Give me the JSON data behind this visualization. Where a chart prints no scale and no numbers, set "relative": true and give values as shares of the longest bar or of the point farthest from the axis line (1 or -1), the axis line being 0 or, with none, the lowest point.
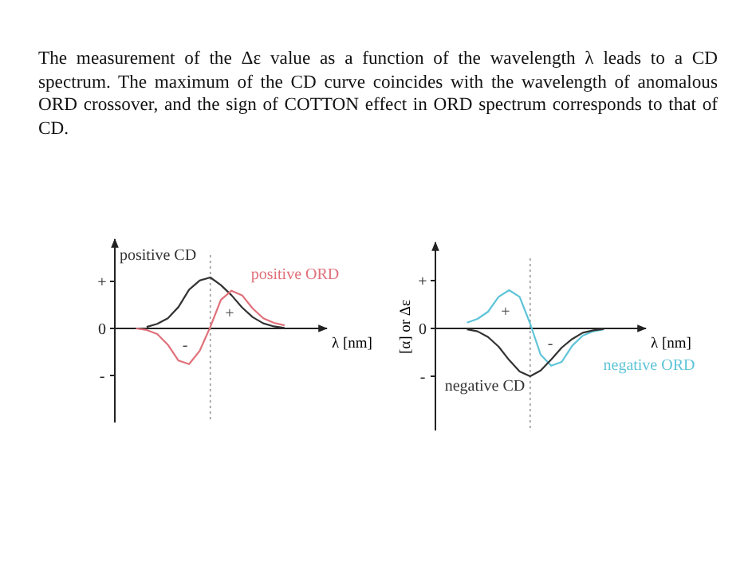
{
  "chart_data": [
    {
      "type": "line",
      "relative": true,
      "title": "The measurement of the Δε value as a function of the wavelength λ leads to a CD spectrum. The maximum of the CD curve coincides with the wavelength of anomalous ORD crossover, and the sign of COTTON effect in ORD spectrum corresponds to that of CD.",
      "xlabel": "λ [nm]",
      "tick_labels": false,
      "categories": [
        null,
        null,
        null,
        null,
        null,
        null,
        null,
        null,
        null,
        null,
        null,
        null,
        null,
        null,
        null,
        null,
        null,
        null,
        null,
        null,
        null
      ],
      "ref_lines": [
        {
          "axis": "x",
          "color": "#9a9a9a",
          "line_style": "dotted"
        }
      ],
      "series": [
        {
          "name": "positive CD",
          "color": "#333333",
          "values": [
            null,
            null,
            null,
            0.03,
            0.09,
            0.2,
            0.42,
            0.76,
            0.94,
            1,
            0.85,
            0.65,
            0.41,
            0.22,
            0.1,
            0.04,
            0.01,
            null,
            null,
            null,
            null
          ]
        },
        {
          "name": "positive ORD",
          "color": "#e0707a",
          "values": [
            null,
            null,
            0,
            -0.03,
            -0.11,
            -0.32,
            -0.63,
            -0.7,
            -0.44,
            0.03,
            0.56,
            0.74,
            0.65,
            0.39,
            0.2,
            0.11,
            0.06,
            null,
            null,
            null,
            null
          ]
        }
      ],
      "annotations": [
        "+",
        "0",
        "-",
        "+",
        "-"
      ]
    },
    {
      "type": "line",
      "relative": true,
      "xlabel": "λ [nm]",
      "ylabel": "[α] or Δε",
      "tick_labels": false,
      "categories": [
        null,
        null,
        null,
        null,
        null,
        null,
        null,
        null,
        null,
        null,
        null,
        null,
        null,
        null,
        null,
        null,
        null,
        null,
        null,
        null,
        null
      ],
      "ref_lines": [
        {
          "axis": "x",
          "color": "#9a9a9a",
          "line_style": "dotted"
        }
      ],
      "series": [
        {
          "name": "negative ORD",
          "color": "#5ec4d8",
          "values": [
            null,
            null,
            null,
            0.12,
            0.2,
            0.35,
            0.66,
            0.8,
            0.66,
            0.1,
            -0.55,
            -0.78,
            -0.7,
            -0.36,
            -0.15,
            -0.06,
            -0.02,
            null,
            null,
            null,
            null
          ]
        },
        {
          "name": "negative CD",
          "color": "#333333",
          "values": [
            null,
            null,
            null,
            -0.02,
            -0.06,
            -0.18,
            -0.38,
            -0.66,
            -0.9,
            -1,
            -0.88,
            -0.65,
            -0.4,
            -0.22,
            -0.09,
            -0.04,
            -0.01,
            null,
            null,
            null,
            null
          ]
        }
      ],
      "annotations": [
        "+",
        "0",
        "-",
        "+",
        "-"
      ]
    }
  ]
}
